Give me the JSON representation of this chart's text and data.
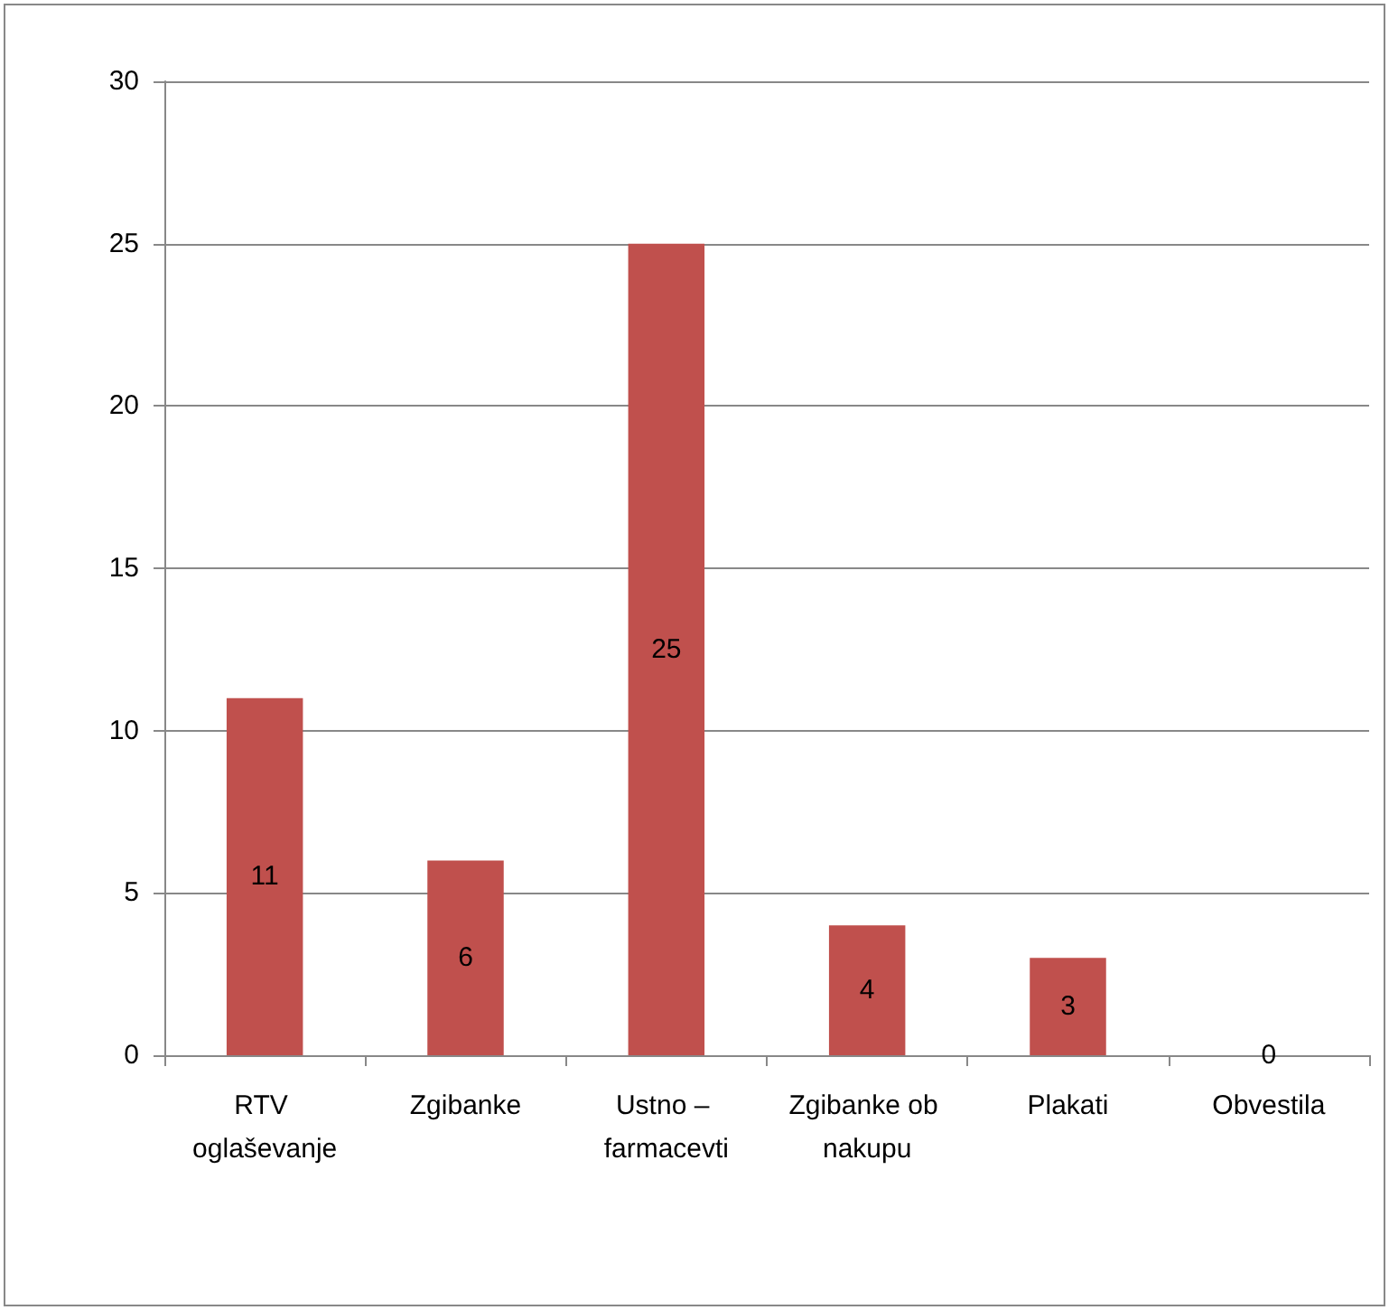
{
  "chart_data": {
    "type": "bar",
    "categories": [
      "RTV oglaševanje",
      "Zgibanke",
      "Ustno – farmacevti",
      "Zgibanke ob nakupu",
      "Plakati",
      "Obvestila"
    ],
    "values": [
      11,
      6,
      25,
      4,
      3,
      0
    ],
    "color": "#c0504d",
    "ylim": [
      0,
      30
    ],
    "yticks": [
      0,
      5,
      10,
      15,
      20,
      25,
      30
    ],
    "grid": "y",
    "data_labels": true
  }
}
